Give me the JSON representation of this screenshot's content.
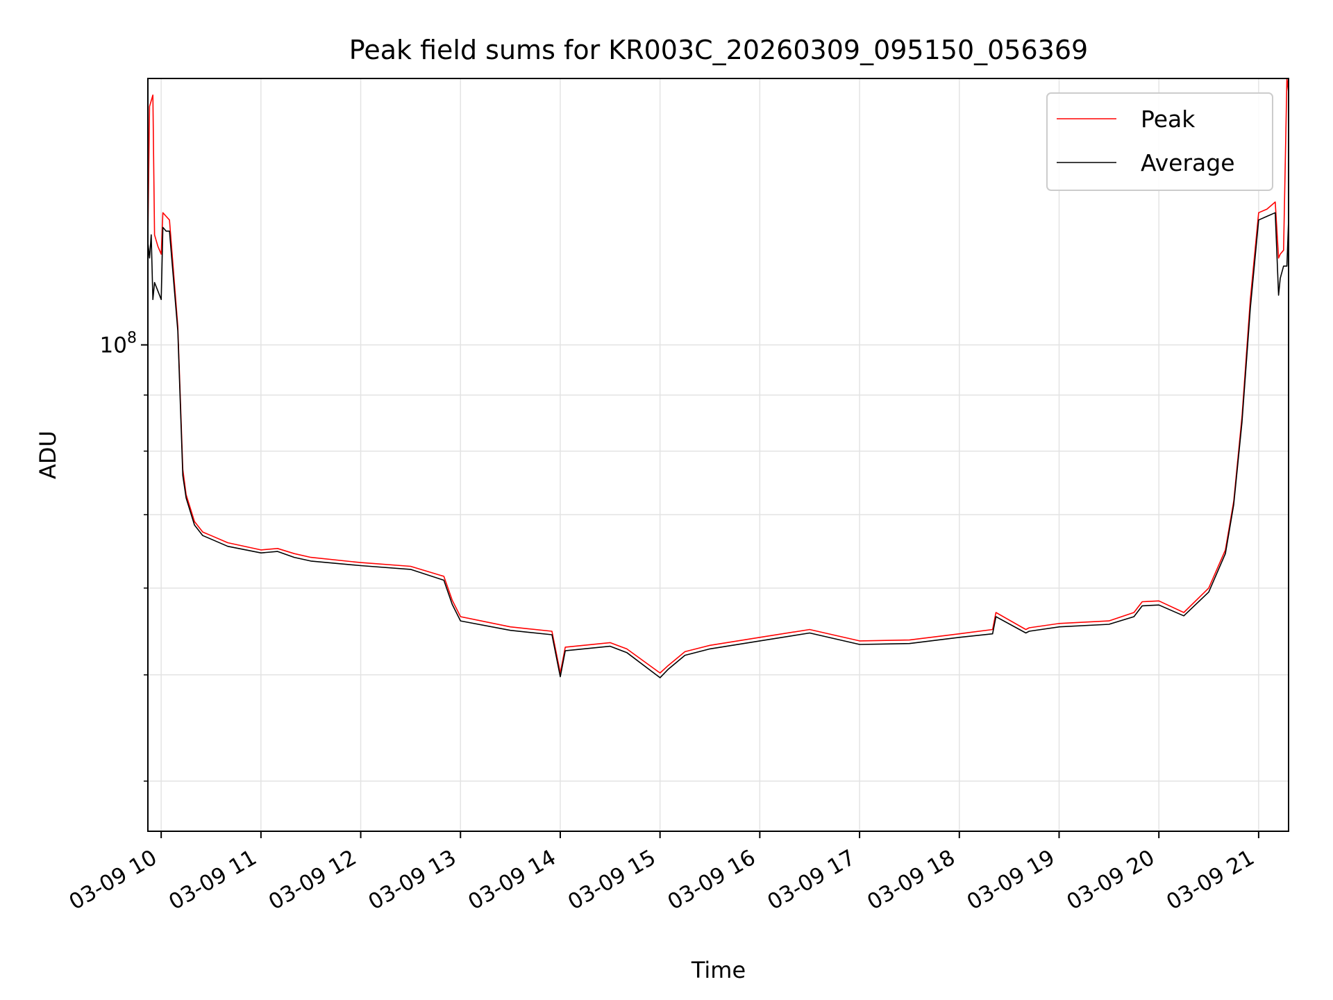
{
  "chart_data": {
    "type": "line",
    "title": "Peak field sums for KR003C_20260309_095150_056369",
    "xlabel": "Time",
    "ylabel": "ADU",
    "y_scale": "log",
    "grid": true,
    "legend_position": "top-right",
    "x_tick_labels": [
      "03-09 10",
      "03-09 11",
      "03-09 12",
      "03-09 13",
      "03-09 14",
      "03-09 15",
      "03-09 16",
      "03-09 17",
      "03-09 18",
      "03-09 19",
      "03-09 20",
      "03-09 21"
    ],
    "x_tick_values": [
      "2026-03-09 10:00",
      "2026-03-09 11:00",
      "2026-03-09 12:00",
      "2026-03-09 13:00",
      "2026-03-09 14:00",
      "2026-03-09 15:00",
      "2026-03-09 16:00",
      "2026-03-09 17:00",
      "2026-03-09 18:00",
      "2026-03-09 19:00",
      "2026-03-09 20:00",
      "2026-03-09 21:00"
    ],
    "xlim": [
      "2026-03-09 09:52",
      "2026-03-09 21:18"
    ],
    "y_major_tick_label": "10^8",
    "y_major_tick_value": 100000000,
    "ylim": [
      36000000,
      175000000
    ],
    "series": [
      {
        "name": "Peak",
        "color": "#ff0000",
        "x": [
          "2026-03-09 09:52",
          "2026-03-09 09:53",
          "2026-03-09 09:54",
          "2026-03-09 09:55",
          "2026-03-09 09:56",
          "2026-03-09 09:58",
          "2026-03-09 10:00",
          "2026-03-09 10:01",
          "2026-03-09 10:03",
          "2026-03-09 10:05",
          "2026-03-09 10:10",
          "2026-03-09 10:13",
          "2026-03-09 10:15",
          "2026-03-09 10:20",
          "2026-03-09 10:25",
          "2026-03-09 10:30",
          "2026-03-09 10:40",
          "2026-03-09 11:00",
          "2026-03-09 11:10",
          "2026-03-09 11:20",
          "2026-03-09 11:30",
          "2026-03-09 12:00",
          "2026-03-09 12:30",
          "2026-03-09 12:50",
          "2026-03-09 12:55",
          "2026-03-09 13:00",
          "2026-03-09 13:30",
          "2026-03-09 13:55",
          "2026-03-09 14:00",
          "2026-03-09 14:03",
          "2026-03-09 14:30",
          "2026-03-09 14:40",
          "2026-03-09 15:00",
          "2026-03-09 15:05",
          "2026-03-09 15:15",
          "2026-03-09 15:30",
          "2026-03-09 16:00",
          "2026-03-09 16:30",
          "2026-03-09 17:00",
          "2026-03-09 17:30",
          "2026-03-09 18:00",
          "2026-03-09 18:20",
          "2026-03-09 18:22",
          "2026-03-09 18:40",
          "2026-03-09 18:42",
          "2026-03-09 19:00",
          "2026-03-09 19:30",
          "2026-03-09 19:45",
          "2026-03-09 19:50",
          "2026-03-09 20:00",
          "2026-03-09 20:15",
          "2026-03-09 20:30",
          "2026-03-09 20:40",
          "2026-03-09 20:45",
          "2026-03-09 20:50",
          "2026-03-09 20:55",
          "2026-03-09 21:00",
          "2026-03-09 21:05",
          "2026-03-09 21:10",
          "2026-03-09 21:12",
          "2026-03-09 21:13",
          "2026-03-09 21:15",
          "2026-03-09 21:17",
          "2026-03-09 21:18"
        ],
        "y": [
          125000000,
          165000000,
          167000000,
          169000000,
          126000000,
          123000000,
          121000000,
          132000000,
          131000000,
          130000000,
          104000000,
          77000000,
          73000000,
          69000000,
          67500000,
          67000000,
          66000000,
          65000000,
          65200000,
          64500000,
          64000000,
          63300000,
          62800000,
          61500000,
          58500000,
          56500000,
          55300000,
          54800000,
          50200000,
          53000000,
          53500000,
          52800000,
          50200000,
          51000000,
          52500000,
          53200000,
          54100000,
          55000000,
          53700000,
          53800000,
          54500000,
          55000000,
          57000000,
          55000000,
          55200000,
          55700000,
          56000000,
          57000000,
          58300000,
          58400000,
          57000000,
          60000000,
          65000000,
          72000000,
          86000000,
          110000000,
          132000000,
          133000000,
          135000000,
          120000000,
          121000000,
          122000000,
          175000000,
          170000000
        ]
      },
      {
        "name": "Average",
        "color": "#000000",
        "x": [
          "2026-03-09 09:52",
          "2026-03-09 09:53",
          "2026-03-09 09:54",
          "2026-03-09 09:55",
          "2026-03-09 09:56",
          "2026-03-09 09:58",
          "2026-03-09 10:00",
          "2026-03-09 10:01",
          "2026-03-09 10:03",
          "2026-03-09 10:05",
          "2026-03-09 10:10",
          "2026-03-09 10:13",
          "2026-03-09 10:15",
          "2026-03-09 10:20",
          "2026-03-09 10:25",
          "2026-03-09 10:30",
          "2026-03-09 10:40",
          "2026-03-09 11:00",
          "2026-03-09 11:10",
          "2026-03-09 11:20",
          "2026-03-09 11:30",
          "2026-03-09 12:00",
          "2026-03-09 12:30",
          "2026-03-09 12:50",
          "2026-03-09 12:55",
          "2026-03-09 13:00",
          "2026-03-09 13:30",
          "2026-03-09 13:55",
          "2026-03-09 14:00",
          "2026-03-09 14:03",
          "2026-03-09 14:30",
          "2026-03-09 14:40",
          "2026-03-09 15:00",
          "2026-03-09 15:05",
          "2026-03-09 15:15",
          "2026-03-09 15:30",
          "2026-03-09 16:00",
          "2026-03-09 16:30",
          "2026-03-09 17:00",
          "2026-03-09 17:30",
          "2026-03-09 18:00",
          "2026-03-09 18:20",
          "2026-03-09 18:22",
          "2026-03-09 18:40",
          "2026-03-09 18:42",
          "2026-03-09 19:00",
          "2026-03-09 19:30",
          "2026-03-09 19:45",
          "2026-03-09 19:50",
          "2026-03-09 20:00",
          "2026-03-09 20:15",
          "2026-03-09 20:30",
          "2026-03-09 20:40",
          "2026-03-09 20:45",
          "2026-03-09 20:50",
          "2026-03-09 20:55",
          "2026-03-09 21:00",
          "2026-03-09 21:05",
          "2026-03-09 21:10",
          "2026-03-09 21:12",
          "2026-03-09 21:13",
          "2026-03-09 21:15",
          "2026-03-09 21:17",
          "2026-03-09 21:18"
        ],
        "y": [
          124000000,
          120000000,
          126000000,
          110000000,
          114000000,
          112000000,
          110000000,
          128000000,
          127000000,
          127000000,
          103000000,
          76000000,
          72500000,
          68500000,
          67000000,
          66500000,
          65500000,
          64600000,
          64800000,
          64000000,
          63500000,
          62900000,
          62400000,
          61000000,
          58000000,
          56000000,
          54900000,
          54400000,
          49800000,
          52600000,
          53100000,
          52400000,
          49700000,
          50600000,
          52100000,
          52800000,
          53700000,
          54600000,
          53300000,
          53400000,
          54100000,
          54500000,
          56500000,
          54600000,
          54800000,
          55300000,
          55600000,
          56500000,
          57800000,
          57900000,
          56600000,
          59500000,
          64500000,
          71500000,
          85000000,
          108000000,
          130000000,
          131000000,
          132000000,
          111000000,
          115000000,
          118000000,
          118000000,
          130000000
        ]
      }
    ]
  },
  "legend": {
    "peak_label": "Peak",
    "average_label": "Average"
  }
}
